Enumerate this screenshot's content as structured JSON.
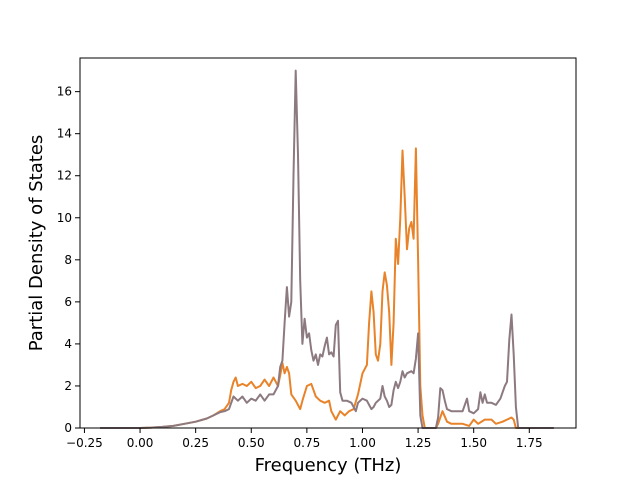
{
  "chart_data": {
    "type": "line",
    "title": "",
    "xlabel": "Frequency (THz)",
    "ylabel": "Partial Density of States",
    "xlim": [
      -0.27,
      1.96
    ],
    "ylim": [
      0,
      17.6
    ],
    "xticks": [
      -0.25,
      0.0,
      0.25,
      0.5,
      0.75,
      1.0,
      1.25,
      1.5,
      1.75
    ],
    "xtick_labels": [
      "−0.25",
      "0.00",
      "0.25",
      "0.50",
      "0.75",
      "1.00",
      "1.25",
      "1.50",
      "1.75"
    ],
    "yticks": [
      0,
      2,
      4,
      6,
      8,
      10,
      12,
      14,
      16
    ],
    "ytick_labels": [
      "0",
      "2",
      "4",
      "6",
      "8",
      "10",
      "12",
      "14",
      "16"
    ],
    "grid": false,
    "legend": "none",
    "series": [
      {
        "color": "#e8832a",
        "points": [
          [
            -0.18,
            0.0
          ],
          [
            0.0,
            0.0
          ],
          [
            0.05,
            0.02
          ],
          [
            0.1,
            0.05
          ],
          [
            0.15,
            0.1
          ],
          [
            0.2,
            0.2
          ],
          [
            0.25,
            0.3
          ],
          [
            0.3,
            0.45
          ],
          [
            0.33,
            0.6
          ],
          [
            0.36,
            0.8
          ],
          [
            0.38,
            0.9
          ],
          [
            0.4,
            1.2
          ],
          [
            0.41,
            1.8
          ],
          [
            0.42,
            2.2
          ],
          [
            0.43,
            2.4
          ],
          [
            0.44,
            2.0
          ],
          [
            0.46,
            2.1
          ],
          [
            0.48,
            2.0
          ],
          [
            0.5,
            2.2
          ],
          [
            0.52,
            1.9
          ],
          [
            0.54,
            2.0
          ],
          [
            0.56,
            2.3
          ],
          [
            0.58,
            2.0
          ],
          [
            0.6,
            2.4
          ],
          [
            0.62,
            2.0
          ],
          [
            0.63,
            2.5
          ],
          [
            0.64,
            3.1
          ],
          [
            0.65,
            2.6
          ],
          [
            0.66,
            2.9
          ],
          [
            0.67,
            2.6
          ],
          [
            0.68,
            1.6
          ],
          [
            0.7,
            1.3
          ],
          [
            0.72,
            0.9
          ],
          [
            0.73,
            1.3
          ],
          [
            0.75,
            2.0
          ],
          [
            0.77,
            2.1
          ],
          [
            0.79,
            1.5
          ],
          [
            0.81,
            1.3
          ],
          [
            0.83,
            1.2
          ],
          [
            0.85,
            1.3
          ],
          [
            0.86,
            0.8
          ],
          [
            0.88,
            0.4
          ],
          [
            0.9,
            0.8
          ],
          [
            0.92,
            0.6
          ],
          [
            0.94,
            0.8
          ],
          [
            0.96,
            0.9
          ],
          [
            0.98,
            1.6
          ],
          [
            1.0,
            2.6
          ],
          [
            1.02,
            3.0
          ],
          [
            1.03,
            5.0
          ],
          [
            1.04,
            6.5
          ],
          [
            1.05,
            5.5
          ],
          [
            1.06,
            3.5
          ],
          [
            1.07,
            3.2
          ],
          [
            1.08,
            4.0
          ],
          [
            1.09,
            6.5
          ],
          [
            1.1,
            7.4
          ],
          [
            1.11,
            6.8
          ],
          [
            1.12,
            5.5
          ],
          [
            1.13,
            3.0
          ],
          [
            1.14,
            5.0
          ],
          [
            1.15,
            9.0
          ],
          [
            1.16,
            7.8
          ],
          [
            1.17,
            10.0
          ],
          [
            1.18,
            13.2
          ],
          [
            1.19,
            11.0
          ],
          [
            1.2,
            8.5
          ],
          [
            1.21,
            9.5
          ],
          [
            1.22,
            9.8
          ],
          [
            1.23,
            9.0
          ],
          [
            1.24,
            13.3
          ],
          [
            1.25,
            8.0
          ],
          [
            1.26,
            2.0
          ],
          [
            1.27,
            0.6
          ],
          [
            1.28,
            0.0
          ],
          [
            1.33,
            0.0
          ],
          [
            1.34,
            0.2
          ],
          [
            1.35,
            0.5
          ],
          [
            1.36,
            0.8
          ],
          [
            1.38,
            0.3
          ],
          [
            1.4,
            0.2
          ],
          [
            1.45,
            0.2
          ],
          [
            1.48,
            0.1
          ],
          [
            1.5,
            0.4
          ],
          [
            1.52,
            0.2
          ],
          [
            1.55,
            0.4
          ],
          [
            1.58,
            0.4
          ],
          [
            1.6,
            0.2
          ],
          [
            1.63,
            0.3
          ],
          [
            1.65,
            0.4
          ],
          [
            1.67,
            0.5
          ],
          [
            1.68,
            0.4
          ],
          [
            1.69,
            0.0
          ],
          [
            1.86,
            0.0
          ]
        ]
      },
      {
        "color": "#8c7a80",
        "points": [
          [
            -0.18,
            0.0
          ],
          [
            0.0,
            0.0
          ],
          [
            0.05,
            0.02
          ],
          [
            0.1,
            0.05
          ],
          [
            0.15,
            0.1
          ],
          [
            0.2,
            0.2
          ],
          [
            0.25,
            0.3
          ],
          [
            0.3,
            0.45
          ],
          [
            0.33,
            0.6
          ],
          [
            0.36,
            0.75
          ],
          [
            0.38,
            0.8
          ],
          [
            0.4,
            0.9
          ],
          [
            0.42,
            1.5
          ],
          [
            0.44,
            1.3
          ],
          [
            0.46,
            1.5
          ],
          [
            0.48,
            1.2
          ],
          [
            0.5,
            1.4
          ],
          [
            0.52,
            1.3
          ],
          [
            0.54,
            1.6
          ],
          [
            0.56,
            1.3
          ],
          [
            0.58,
            1.6
          ],
          [
            0.6,
            1.6
          ],
          [
            0.62,
            2.0
          ],
          [
            0.63,
            2.9
          ],
          [
            0.64,
            3.2
          ],
          [
            0.65,
            5.0
          ],
          [
            0.66,
            6.7
          ],
          [
            0.67,
            5.3
          ],
          [
            0.68,
            6.0
          ],
          [
            0.69,
            12.0
          ],
          [
            0.7,
            17.0
          ],
          [
            0.71,
            13.0
          ],
          [
            0.72,
            7.0
          ],
          [
            0.73,
            4.0
          ],
          [
            0.74,
            5.2
          ],
          [
            0.75,
            4.3
          ],
          [
            0.76,
            4.5
          ],
          [
            0.77,
            3.7
          ],
          [
            0.78,
            3.2
          ],
          [
            0.79,
            3.5
          ],
          [
            0.8,
            3.0
          ],
          [
            0.81,
            3.5
          ],
          [
            0.82,
            3.4
          ],
          [
            0.83,
            3.9
          ],
          [
            0.84,
            4.3
          ],
          [
            0.85,
            3.5
          ],
          [
            0.86,
            3.6
          ],
          [
            0.87,
            3.4
          ],
          [
            0.88,
            4.9
          ],
          [
            0.89,
            5.1
          ],
          [
            0.9,
            1.7
          ],
          [
            0.91,
            1.3
          ],
          [
            0.93,
            1.3
          ],
          [
            0.95,
            1.2
          ],
          [
            0.97,
            0.8
          ],
          [
            0.98,
            1.2
          ],
          [
            1.0,
            1.4
          ],
          [
            1.02,
            1.3
          ],
          [
            1.03,
            1.1
          ],
          [
            1.04,
            0.9
          ],
          [
            1.05,
            1.0
          ],
          [
            1.06,
            1.2
          ],
          [
            1.08,
            1.4
          ],
          [
            1.09,
            2.0
          ],
          [
            1.1,
            1.5
          ],
          [
            1.11,
            1.3
          ],
          [
            1.12,
            1.0
          ],
          [
            1.13,
            1.1
          ],
          [
            1.14,
            1.8
          ],
          [
            1.15,
            2.2
          ],
          [
            1.16,
            1.9
          ],
          [
            1.17,
            2.2
          ],
          [
            1.18,
            2.7
          ],
          [
            1.19,
            2.4
          ],
          [
            1.2,
            2.6
          ],
          [
            1.22,
            2.7
          ],
          [
            1.23,
            2.6
          ],
          [
            1.24,
            3.3
          ],
          [
            1.25,
            4.5
          ],
          [
            1.26,
            0.6
          ],
          [
            1.27,
            0.0
          ],
          [
            1.33,
            0.0
          ],
          [
            1.34,
            0.5
          ],
          [
            1.35,
            1.9
          ],
          [
            1.36,
            1.8
          ],
          [
            1.37,
            1.3
          ],
          [
            1.38,
            0.9
          ],
          [
            1.4,
            0.8
          ],
          [
            1.45,
            0.8
          ],
          [
            1.46,
            1.1
          ],
          [
            1.47,
            1.4
          ],
          [
            1.48,
            0.8
          ],
          [
            1.5,
            0.7
          ],
          [
            1.52,
            0.9
          ],
          [
            1.53,
            1.7
          ],
          [
            1.54,
            1.2
          ],
          [
            1.55,
            1.6
          ],
          [
            1.56,
            1.2
          ],
          [
            1.58,
            1.2
          ],
          [
            1.6,
            1.1
          ],
          [
            1.62,
            1.4
          ],
          [
            1.64,
            2.0
          ],
          [
            1.65,
            2.2
          ],
          [
            1.66,
            4.2
          ],
          [
            1.67,
            5.4
          ],
          [
            1.68,
            3.5
          ],
          [
            1.69,
            1.0
          ],
          [
            1.7,
            0.0
          ],
          [
            1.86,
            0.0
          ]
        ]
      }
    ]
  }
}
